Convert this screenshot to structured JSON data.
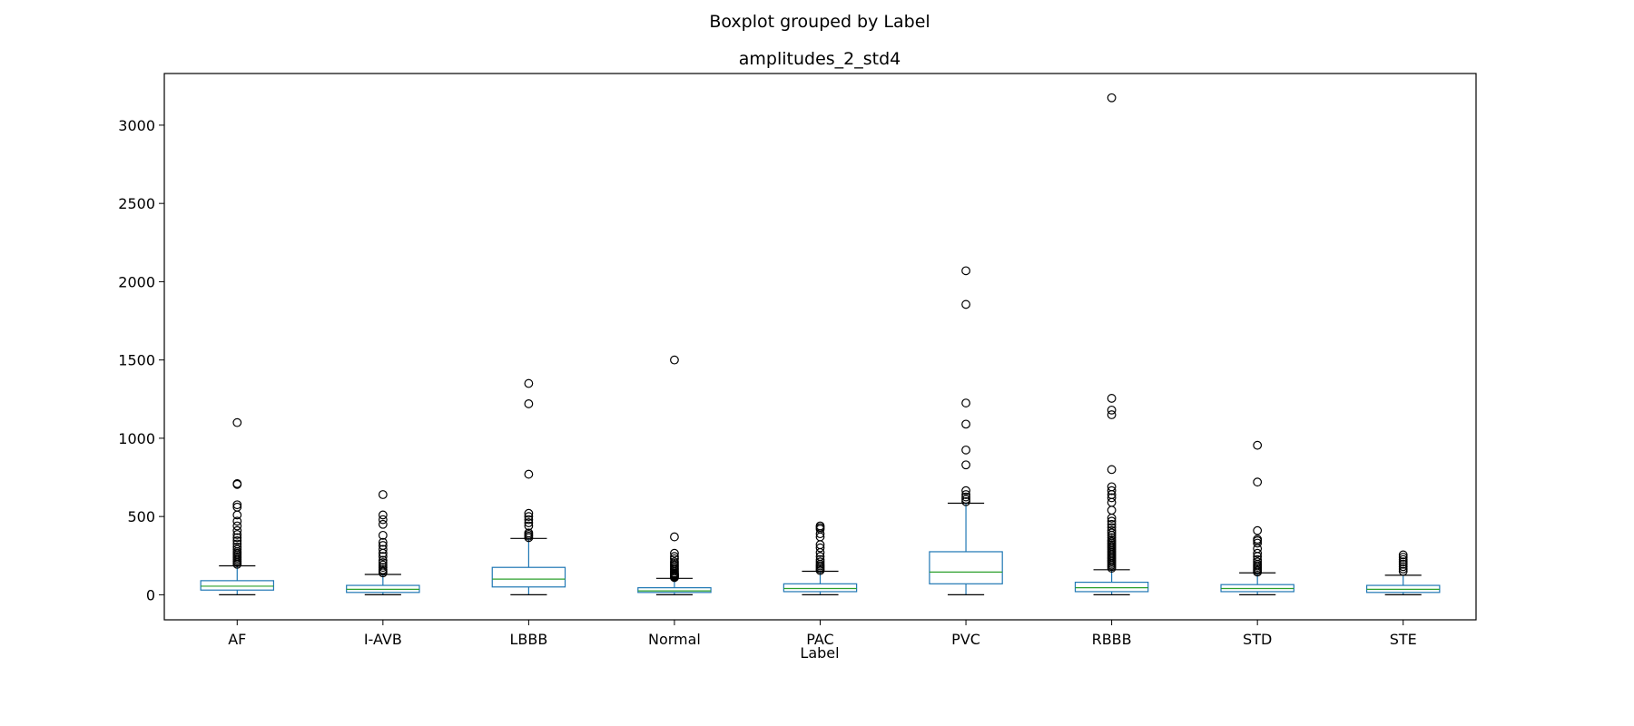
{
  "suptitle": "Boxplot grouped by Label",
  "chart_data": {
    "type": "box",
    "title": "amplitudes_2_std4",
    "xlabel": "Label",
    "ylabel": "",
    "ylim": [
      -160,
      3330
    ],
    "yticks": [
      0,
      500,
      1000,
      1500,
      2000,
      2500,
      3000
    ],
    "grid": false,
    "colors": {
      "box": "#1f77b4",
      "median": "#2ca02c",
      "cap": "#000000",
      "flier": "#000000"
    },
    "categories": [
      "AF",
      "I-AVB",
      "LBBB",
      "Normal",
      "PAC",
      "PVC",
      "RBBB",
      "STD",
      "STE"
    ],
    "boxes": [
      {
        "label": "AF",
        "whislo": 0,
        "q1": 30,
        "med": 55,
        "q3": 90,
        "whishi": 185,
        "fliers": [
          195,
          205,
          215,
          225,
          235,
          245,
          255,
          265,
          275,
          290,
          305,
          325,
          345,
          365,
          385,
          410,
          440,
          470,
          510,
          560,
          575,
          705,
          710,
          1100
        ]
      },
      {
        "label": "I-AVB",
        "whislo": 0,
        "q1": 15,
        "med": 35,
        "q3": 60,
        "whishi": 130,
        "fliers": [
          140,
          150,
          160,
          175,
          190,
          205,
          220,
          245,
          265,
          290,
          315,
          335,
          380,
          450,
          480,
          510,
          640
        ]
      },
      {
        "label": "LBBB",
        "whislo": 0,
        "q1": 50,
        "med": 100,
        "q3": 175,
        "whishi": 360,
        "fliers": [
          365,
          375,
          385,
          395,
          440,
          460,
          480,
          500,
          520,
          770,
          1220,
          1350
        ]
      },
      {
        "label": "Normal",
        "whislo": 0,
        "q1": 15,
        "med": 25,
        "q3": 45,
        "whishi": 105,
        "fliers": [
          110,
          115,
          120,
          125,
          130,
          135,
          140,
          150,
          160,
          170,
          180,
          190,
          200,
          210,
          230,
          245,
          265,
          370,
          1500
        ]
      },
      {
        "label": "PAC",
        "whislo": 0,
        "q1": 20,
        "med": 40,
        "q3": 70,
        "whishi": 150,
        "fliers": [
          155,
          165,
          175,
          185,
          195,
          210,
          225,
          245,
          270,
          300,
          320,
          370,
          390,
          420,
          430,
          440
        ]
      },
      {
        "label": "PVC",
        "whislo": 0,
        "q1": 70,
        "med": 145,
        "q3": 275,
        "whishi": 585,
        "fliers": [
          595,
          610,
          625,
          640,
          665,
          830,
          925,
          1090,
          1225,
          1855,
          2070
        ]
      },
      {
        "label": "RBBB",
        "whislo": 0,
        "q1": 20,
        "med": 45,
        "q3": 80,
        "whishi": 160,
        "fliers": [
          170,
          180,
          190,
          200,
          210,
          220,
          230,
          240,
          250,
          260,
          270,
          280,
          290,
          300,
          310,
          320,
          330,
          340,
          350,
          365,
          380,
          395,
          410,
          430,
          450,
          470,
          490,
          540,
          590,
          620,
          640,
          665,
          690,
          800,
          1150,
          1180,
          1255,
          3175
        ]
      },
      {
        "label": "STD",
        "whislo": 0,
        "q1": 20,
        "med": 40,
        "q3": 65,
        "whishi": 140,
        "fliers": [
          145,
          155,
          165,
          175,
          185,
          195,
          210,
          225,
          245,
          265,
          295,
          330,
          345,
          355,
          410,
          720,
          955
        ]
      },
      {
        "label": "STE",
        "whislo": 0,
        "q1": 15,
        "med": 35,
        "q3": 60,
        "whishi": 125,
        "fliers": [
          150,
          165,
          180,
          195,
          210,
          225,
          240,
          255
        ]
      }
    ]
  }
}
